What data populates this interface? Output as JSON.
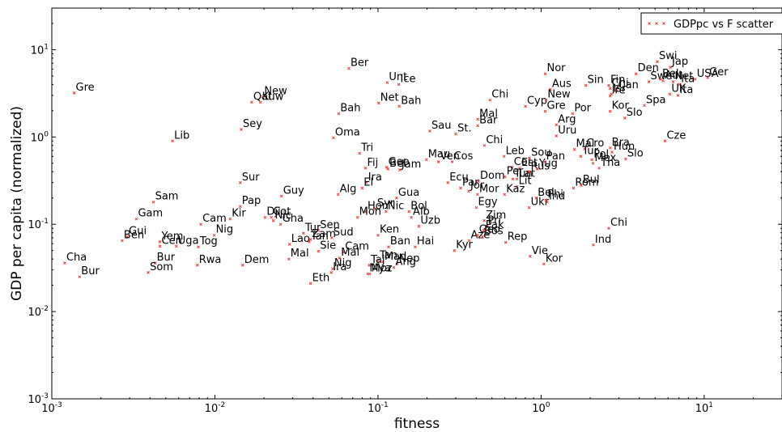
{
  "chart_data": {
    "type": "scatter",
    "title": "",
    "xlabel": "fitness",
    "ylabel": "GDP per capita (normalized)",
    "xscale": "log",
    "yscale": "log",
    "xlim": [
      0.001,
      30
    ],
    "ylim": [
      0.001,
      30
    ],
    "grid": false,
    "legend_position": "top-right",
    "x_ticks": [
      {
        "value": 0.001,
        "base": "10",
        "exp": "-3"
      },
      {
        "value": 0.01,
        "base": "10",
        "exp": "-2"
      },
      {
        "value": 0.1,
        "base": "10",
        "exp": "-1"
      },
      {
        "value": 1,
        "base": "10",
        "exp": "0"
      },
      {
        "value": 10,
        "base": "10",
        "exp": "1"
      }
    ],
    "y_ticks": [
      {
        "value": 0.001,
        "base": "10",
        "exp": "-3"
      },
      {
        "value": 0.01,
        "base": "10",
        "exp": "-2"
      },
      {
        "value": 0.1,
        "base": "10",
        "exp": "-1"
      },
      {
        "value": 1,
        "base": "10",
        "exp": "0"
      },
      {
        "value": 10,
        "base": "10",
        "exp": "1"
      }
    ],
    "marker_color": "#e8413c",
    "series": [
      {
        "name": "GDPpc vs F scatter",
        "points": [
          {
            "label": "Gre",
            "x": 0.00137,
            "y": 3.2
          },
          {
            "label": "Lib",
            "x": 0.0055,
            "y": 0.9
          },
          {
            "label": "Sam",
            "x": 0.0042,
            "y": 0.18
          },
          {
            "label": "Gam",
            "x": 0.0033,
            "y": 0.115
          },
          {
            "label": "Gui",
            "x": 0.0029,
            "y": 0.072
          },
          {
            "label": "Ben",
            "x": 0.0027,
            "y": 0.065
          },
          {
            "label": "Cha",
            "x": 0.0012,
            "y": 0.036
          },
          {
            "label": "Bur",
            "x": 0.00148,
            "y": 0.025
          },
          {
            "label": "Yem",
            "x": 0.0046,
            "y": 0.063
          },
          {
            "label": "Cen",
            "x": 0.0046,
            "y": 0.056
          },
          {
            "label": "Uga",
            "x": 0.0058,
            "y": 0.056
          },
          {
            "label": "Tog",
            "x": 0.0079,
            "y": 0.055
          },
          {
            "label": "Bur",
            "x": 0.0043,
            "y": 0.036
          },
          {
            "label": "Som",
            "x": 0.0039,
            "y": 0.028
          },
          {
            "label": "Rwa",
            "x": 0.0078,
            "y": 0.034
          },
          {
            "label": "Cam",
            "x": 0.0082,
            "y": 0.1
          },
          {
            "label": "Nig",
            "x": 0.0099,
            "y": 0.075
          },
          {
            "label": "Kir",
            "x": 0.0124,
            "y": 0.115
          },
          {
            "label": "Pap",
            "x": 0.0143,
            "y": 0.16
          },
          {
            "label": "Sur",
            "x": 0.0143,
            "y": 0.3
          },
          {
            "label": "Sey",
            "x": 0.0145,
            "y": 1.22
          },
          {
            "label": "Qat",
            "x": 0.0168,
            "y": 2.5
          },
          {
            "label": "Kuw",
            "x": 0.019,
            "y": 2.5
          },
          {
            "label": "New",
            "x": 0.0196,
            "y": 2.9
          },
          {
            "label": "Dem",
            "x": 0.0148,
            "y": 0.034
          },
          {
            "label": "Guy",
            "x": 0.0256,
            "y": 0.21
          },
          {
            "label": "Dji",
            "x": 0.0203,
            "y": 0.12
          },
          {
            "label": "Cot",
            "x": 0.0222,
            "y": 0.12
          },
          {
            "label": "Nic",
            "x": 0.0228,
            "y": 0.11
          },
          {
            "label": "Gha",
            "x": 0.0253,
            "y": 0.1
          },
          {
            "label": "Tur",
            "x": 0.0349,
            "y": 0.079
          },
          {
            "label": "Sen",
            "x": 0.0431,
            "y": 0.085
          },
          {
            "label": "Zam",
            "x": 0.0385,
            "y": 0.067
          },
          {
            "label": "Tan",
            "x": 0.0378,
            "y": 0.063
          },
          {
            "label": "Lao",
            "x": 0.0287,
            "y": 0.059
          },
          {
            "label": "Sie",
            "x": 0.0431,
            "y": 0.049
          },
          {
            "label": "Sud",
            "x": 0.0521,
            "y": 0.07
          },
          {
            "label": "Mal",
            "x": 0.0284,
            "y": 0.04
          },
          {
            "label": "Eth",
            "x": 0.0386,
            "y": 0.021
          },
          {
            "label": "Nig",
            "x": 0.0527,
            "y": 0.031
          },
          {
            "label": "Ira",
            "x": 0.0517,
            "y": 0.028
          },
          {
            "label": "Cam",
            "x": 0.0614,
            "y": 0.048
          },
          {
            "label": "Mal",
            "x": 0.058,
            "y": 0.041
          },
          {
            "label": "Oma",
            "x": 0.0533,
            "y": 0.98
          },
          {
            "label": "Bah",
            "x": 0.0574,
            "y": 1.85
          },
          {
            "label": "Ber",
            "x": 0.0663,
            "y": 6.1
          },
          {
            "label": "Alg",
            "x": 0.0569,
            "y": 0.22
          },
          {
            "label": "Tri",
            "x": 0.0771,
            "y": 0.65
          },
          {
            "label": "Fij",
            "x": 0.0838,
            "y": 0.44
          },
          {
            "label": "Ira",
            "x": 0.085,
            "y": 0.3
          },
          {
            "label": "El",
            "x": 0.0799,
            "y": 0.26
          },
          {
            "label": "Syr",
            "x": 0.0965,
            "y": 0.15
          },
          {
            "label": "Hon",
            "x": 0.0843,
            "y": 0.14
          },
          {
            "label": "Mon",
            "x": 0.0749,
            "y": 0.12
          },
          {
            "label": "Nic",
            "x": 0.112,
            "y": 0.14
          },
          {
            "label": "Bol",
            "x": 0.155,
            "y": 0.14
          },
          {
            "label": "Alb",
            "x": 0.16,
            "y": 0.12
          },
          {
            "label": "Gua",
            "x": 0.13,
            "y": 0.2
          },
          {
            "label": "Ken",
            "x": 0.1,
            "y": 0.075
          },
          {
            "label": "Ban",
            "x": 0.116,
            "y": 0.055
          },
          {
            "label": "Uzb",
            "x": 0.178,
            "y": 0.095
          },
          {
            "label": "Hai",
            "x": 0.169,
            "y": 0.055
          },
          {
            "label": "Tan",
            "x": 0.1,
            "y": 0.038
          },
          {
            "label": "Mad",
            "x": 0.107,
            "y": 0.037
          },
          {
            "label": "Nep",
            "x": 0.131,
            "y": 0.035
          },
          {
            "label": "Ang",
            "x": 0.125,
            "y": 0.032
          },
          {
            "label": "Taj",
            "x": 0.0884,
            "y": 0.034
          },
          {
            "label": "Moz",
            "x": 0.0889,
            "y": 0.027
          },
          {
            "label": "Mya",
            "x": 0.0866,
            "y": 0.027
          },
          {
            "label": "Unt",
            "x": 0.114,
            "y": 4.2
          },
          {
            "label": "Ice",
            "x": 0.134,
            "y": 4.0
          },
          {
            "label": "Net",
            "x": 0.101,
            "y": 2.45
          },
          {
            "label": "Bah",
            "x": 0.135,
            "y": 2.25
          },
          {
            "label": "Bel",
            "x": 0.115,
            "y": 0.43
          },
          {
            "label": "Geo",
            "x": 0.113,
            "y": 0.45
          },
          {
            "label": "Jam",
            "x": 0.136,
            "y": 0.42
          },
          {
            "label": "Mau",
            "x": 0.198,
            "y": 0.55
          },
          {
            "label": "Ven",
            "x": 0.235,
            "y": 0.52
          },
          {
            "label": "Cos",
            "x": 0.285,
            "y": 0.52
          },
          {
            "label": "Sau",
            "x": 0.208,
            "y": 1.17
          },
          {
            "label": "St.",
            "x": 0.3,
            "y": 1.08
          },
          {
            "label": "Ecu",
            "x": 0.268,
            "y": 0.3
          },
          {
            "label": "Par",
            "x": 0.321,
            "y": 0.26
          },
          {
            "label": "Jor",
            "x": 0.36,
            "y": 0.24
          },
          {
            "label": "Kyr",
            "x": 0.294,
            "y": 0.05
          },
          {
            "label": "Aze",
            "x": 0.362,
            "y": 0.065
          },
          {
            "label": "Mal",
            "x": 0.409,
            "y": 1.6
          },
          {
            "label": "Bar",
            "x": 0.409,
            "y": 1.35
          },
          {
            "label": "Chi",
            "x": 0.486,
            "y": 2.65
          },
          {
            "label": "Chi",
            "x": 0.449,
            "y": 0.8
          },
          {
            "label": "Dom",
            "x": 0.413,
            "y": 0.31
          },
          {
            "label": "Mor",
            "x": 0.408,
            "y": 0.22
          },
          {
            "label": "Egy",
            "x": 0.401,
            "y": 0.155
          },
          {
            "label": "Zim",
            "x": 0.448,
            "y": 0.11
          },
          {
            "label": "Pri",
            "x": 0.46,
            "y": 0.095
          },
          {
            "label": "Pak",
            "x": 0.446,
            "y": 0.085
          },
          {
            "label": "Geo",
            "x": 0.407,
            "y": 0.075
          },
          {
            "label": "Bos",
            "x": 0.437,
            "y": 0.072
          },
          {
            "label": "Rep",
            "x": 0.607,
            "y": 0.062
          },
          {
            "label": "Leb",
            "x": 0.593,
            "y": 0.6
          },
          {
            "label": "Col",
            "x": 0.665,
            "y": 0.45
          },
          {
            "label": "Est",
            "x": 0.74,
            "y": 0.44
          },
          {
            "label": "Per",
            "x": 0.6,
            "y": 0.35
          },
          {
            "label": "Tun",
            "x": 0.67,
            "y": 0.33
          },
          {
            "label": "Lat",
            "x": 0.712,
            "y": 0.33
          },
          {
            "label": "Lit",
            "x": 0.712,
            "y": 0.27
          },
          {
            "label": "Kaz",
            "x": 0.597,
            "y": 0.22
          },
          {
            "label": "Sou",
            "x": 0.85,
            "y": 0.57
          },
          {
            "label": "Rus",
            "x": 0.845,
            "y": 0.4
          },
          {
            "label": "Yug",
            "x": 0.95,
            "y": 0.43
          },
          {
            "label": "Pan",
            "x": 1.05,
            "y": 0.52
          },
          {
            "label": "Cyp",
            "x": 0.801,
            "y": 2.25
          },
          {
            "label": "Gre",
            "x": 1.06,
            "y": 1.97
          },
          {
            "label": "Aus",
            "x": 1.14,
            "y": 3.5
          },
          {
            "label": "New",
            "x": 1.07,
            "y": 2.65
          },
          {
            "label": "Nor",
            "x": 1.06,
            "y": 5.3
          },
          {
            "label": "Ukr",
            "x": 0.844,
            "y": 0.155
          },
          {
            "label": "Bel",
            "x": 0.932,
            "y": 0.2
          },
          {
            "label": "Phi",
            "x": 1.07,
            "y": 0.19
          },
          {
            "label": "Ind",
            "x": 1.09,
            "y": 0.18
          },
          {
            "label": "Vie",
            "x": 0.856,
            "y": 0.043
          },
          {
            "label": "Kor",
            "x": 1.04,
            "y": 0.035
          },
          {
            "label": "Por",
            "x": 1.56,
            "y": 1.85
          },
          {
            "label": "Arg",
            "x": 1.24,
            "y": 1.38
          },
          {
            "label": "Uru",
            "x": 1.24,
            "y": 1.03
          },
          {
            "label": "Mal",
            "x": 1.6,
            "y": 0.72
          },
          {
            "label": "Cro",
            "x": 1.85,
            "y": 0.73
          },
          {
            "label": "Tur",
            "x": 1.75,
            "y": 0.6
          },
          {
            "label": "Pol",
            "x": 2.05,
            "y": 0.55
          },
          {
            "label": "Mex",
            "x": 2.08,
            "y": 0.5
          },
          {
            "label": "Tha",
            "x": 2.27,
            "y": 0.44
          },
          {
            "label": "Rom",
            "x": 1.58,
            "y": 0.26
          },
          {
            "label": "Bul",
            "x": 1.76,
            "y": 0.28
          },
          {
            "label": "Chi",
            "x": 2.6,
            "y": 0.09
          },
          {
            "label": "Ind",
            "x": 2.09,
            "y": 0.058
          },
          {
            "label": "Sin",
            "x": 1.88,
            "y": 3.9
          },
          {
            "label": "Fin",
            "x": 2.6,
            "y": 3.9
          },
          {
            "label": "Chi",
            "x": 2.65,
            "y": 3.6
          },
          {
            "label": "Can",
            "x": 2.9,
            "y": 3.4
          },
          {
            "label": "Isr",
            "x": 2.7,
            "y": 3.1
          },
          {
            "label": "Ire",
            "x": 2.65,
            "y": 2.95
          },
          {
            "label": "Kor",
            "x": 2.65,
            "y": 1.97
          },
          {
            "label": "Slo",
            "x": 3.26,
            "y": 1.65
          },
          {
            "label": "Bra",
            "x": 2.65,
            "y": 0.75
          },
          {
            "label": "Hun",
            "x": 2.72,
            "y": 0.67
          },
          {
            "label": "Slo",
            "x": 3.3,
            "y": 0.56
          },
          {
            "label": "Den",
            "x": 3.82,
            "y": 5.3
          },
          {
            "label": "Swi",
            "x": 5.16,
            "y": 7.3
          },
          {
            "label": "Jap",
            "x": 6.2,
            "y": 6.3
          },
          {
            "label": "Swe",
            "x": 4.58,
            "y": 4.3
          },
          {
            "label": "Bel",
            "x": 5.4,
            "y": 4.6
          },
          {
            "label": "Aut",
            "x": 5.6,
            "y": 4.4
          },
          {
            "label": "Net",
            "x": 6.45,
            "y": 4.3
          },
          {
            "label": "USA",
            "x": 8.8,
            "y": 4.6
          },
          {
            "label": "Ita",
            "x": 7.05,
            "y": 4.0
          },
          {
            "label": "UK",
            "x": 6.15,
            "y": 3.1
          },
          {
            "label": "Ita",
            "x": 6.9,
            "y": 3.0
          },
          {
            "label": "Spa",
            "x": 4.3,
            "y": 2.3
          },
          {
            "label": "Ger",
            "x": 10.5,
            "y": 4.8
          },
          {
            "label": "Cze",
            "x": 5.75,
            "y": 0.9
          }
        ]
      }
    ]
  }
}
